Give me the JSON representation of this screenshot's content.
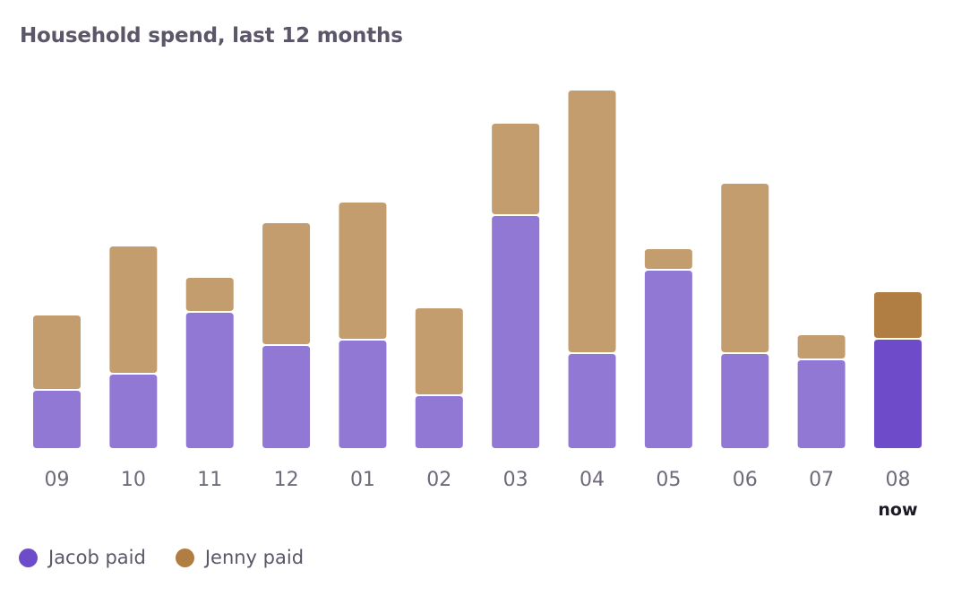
{
  "title": "Household spend, last 12 months",
  "colors": {
    "jacob": "#9078d4",
    "jenny": "#c49d6f",
    "jacob_current": "#6e4bc9",
    "jenny_current": "#b07d42",
    "legend_jacob": "#6e4bc9",
    "legend_jenny": "#b07d42"
  },
  "legend": [
    {
      "label": "Jacob paid",
      "color": "#6e4bc9"
    },
    {
      "label": "Jenny paid",
      "color": "#b07d42"
    }
  ],
  "current_label": "now",
  "chart_data": {
    "type": "bar",
    "stacked": true,
    "title": "Household spend, last 12 months",
    "categories": [
      "09",
      "10",
      "11",
      "12",
      "01",
      "02",
      "03",
      "04",
      "05",
      "06",
      "07",
      "08"
    ],
    "current_category": "08",
    "series": [
      {
        "name": "Jacob paid",
        "values": [
          64,
          82,
          151,
          114,
          120,
          58,
          259,
          105,
          198,
          105,
          98,
          121
        ]
      },
      {
        "name": "Jenny paid",
        "values": [
          82,
          141,
          37,
          135,
          152,
          96,
          101,
          292,
          22,
          188,
          26,
          51
        ]
      }
    ],
    "ylim": [
      0,
      400
    ],
    "axis_visible": false,
    "grid": false,
    "legend_position": "bottom-left"
  }
}
